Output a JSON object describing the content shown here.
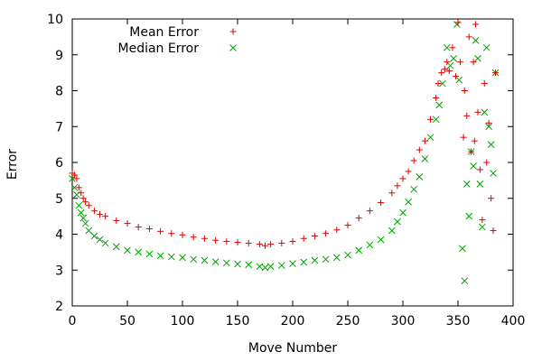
{
  "chart_data": {
    "type": "scatter",
    "xlabel": "Move Number",
    "ylabel": "Error",
    "xlim": [
      0,
      400
    ],
    "ylim": [
      2,
      10
    ],
    "xticks": [
      0,
      50,
      100,
      150,
      200,
      250,
      300,
      350,
      400
    ],
    "yticks": [
      2,
      3,
      4,
      5,
      6,
      7,
      8,
      9,
      10
    ],
    "grid": false,
    "legend": "top-left",
    "series": [
      {
        "name": "Mean Error",
        "marker": "plus",
        "color": "#e00000",
        "x": [
          0,
          2,
          4,
          6,
          8,
          10,
          12,
          15,
          20,
          25,
          30,
          40,
          50,
          60,
          70,
          80,
          90,
          100,
          110,
          120,
          130,
          140,
          150,
          160,
          170,
          175,
          180,
          190,
          200,
          210,
          220,
          230,
          240,
          250,
          260,
          270,
          280,
          290,
          295,
          300,
          305,
          310,
          315,
          320,
          325,
          330,
          332,
          335,
          338,
          340,
          342,
          345,
          348,
          350,
          352,
          355,
          356,
          358,
          360,
          362,
          364,
          365,
          366,
          368,
          370,
          372,
          374,
          376,
          378,
          380,
          382,
          384
        ],
        "y": [
          5.7,
          5.65,
          5.55,
          5.3,
          5.15,
          5.0,
          4.9,
          4.8,
          4.65,
          4.55,
          4.5,
          4.38,
          4.3,
          4.2,
          4.15,
          4.08,
          4.02,
          3.98,
          3.92,
          3.88,
          3.83,
          3.8,
          3.77,
          3.75,
          3.72,
          3.68,
          3.72,
          3.75,
          3.8,
          3.88,
          3.95,
          4.02,
          4.12,
          4.25,
          4.45,
          4.65,
          4.88,
          5.15,
          5.35,
          5.55,
          5.75,
          6.05,
          6.35,
          6.6,
          7.2,
          7.8,
          8.2,
          8.5,
          8.6,
          8.8,
          8.55,
          9.2,
          8.4,
          9.9,
          8.8,
          6.7,
          8.0,
          7.3,
          9.5,
          6.3,
          8.8,
          6.6,
          9.85,
          7.4,
          5.8,
          4.4,
          8.2,
          6.0,
          7.1,
          5.0,
          4.1,
          8.5
        ]
      },
      {
        "name": "Median Error",
        "marker": "cross",
        "color": "#00a000",
        "x": [
          0,
          2,
          4,
          6,
          8,
          10,
          12,
          15,
          20,
          25,
          30,
          40,
          50,
          60,
          70,
          80,
          90,
          100,
          110,
          120,
          130,
          140,
          150,
          160,
          170,
          175,
          180,
          190,
          200,
          210,
          220,
          230,
          240,
          250,
          260,
          270,
          280,
          290,
          295,
          300,
          305,
          310,
          315,
          320,
          325,
          330,
          333,
          336,
          340,
          343,
          346,
          349,
          351,
          354,
          356,
          358,
          360,
          362,
          364,
          366,
          368,
          370,
          372,
          374,
          376,
          378,
          380,
          382,
          384
        ],
        "y": [
          5.55,
          5.3,
          5.1,
          4.8,
          4.6,
          4.45,
          4.3,
          4.1,
          3.95,
          3.85,
          3.75,
          3.65,
          3.55,
          3.5,
          3.45,
          3.4,
          3.37,
          3.35,
          3.3,
          3.27,
          3.23,
          3.2,
          3.17,
          3.15,
          3.1,
          3.07,
          3.1,
          3.13,
          3.18,
          3.22,
          3.27,
          3.3,
          3.35,
          3.42,
          3.55,
          3.7,
          3.85,
          4.1,
          4.35,
          4.6,
          4.9,
          5.25,
          5.6,
          6.1,
          6.7,
          7.2,
          7.6,
          8.2,
          9.2,
          8.7,
          8.9,
          9.85,
          8.3,
          3.6,
          2.7,
          5.4,
          4.5,
          6.3,
          5.9,
          9.4,
          8.9,
          5.4,
          4.2,
          7.4,
          9.2,
          7.0,
          6.5,
          5.7,
          8.5
        ]
      }
    ]
  }
}
